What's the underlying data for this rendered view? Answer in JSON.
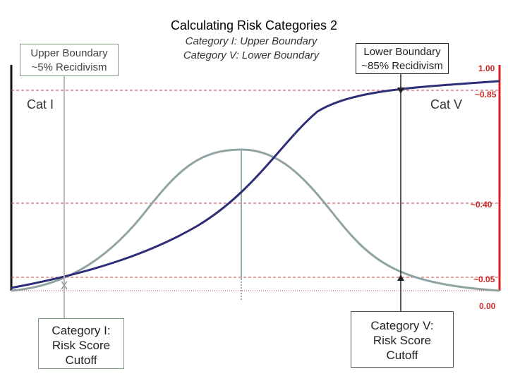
{
  "title": "Calculating Risk Categories 2",
  "subtitle": {
    "line1": "Category I: Upper Boundary",
    "line2": "Category V: Lower Boundary"
  },
  "upper_boundary_box": {
    "line1": "Upper Boundary",
    "line2": "~5% Recidivism"
  },
  "lower_boundary_box": {
    "line1": "Lower Boundary",
    "line2": "~85% Recidivism"
  },
  "category_i_cutoff_box": {
    "line1": "Category I:",
    "line2": "Risk Score",
    "line3": "Cutoff"
  },
  "category_v_cutoff_box": {
    "line1": "Category V:",
    "line2": "Risk Score",
    "line3": "Cutoff"
  },
  "cat_i_label": "Cat I",
  "cat_v_label": "Cat  V",
  "cutoff_marker": "x",
  "probability_ticks": [
    "1.00",
    "~0.85",
    "~0.40",
    "~0.05",
    "0.00"
  ],
  "colors": {
    "logistic_curve": "#2e2e78",
    "bell_curve": "#8fa3a3",
    "guide_lines": "#cc3b3b",
    "right_axis": "#d81f1f",
    "tick_text": "#cc2a2a",
    "category_i_line": "#b8b8b8",
    "mean_line": "#8fb3b3"
  }
}
